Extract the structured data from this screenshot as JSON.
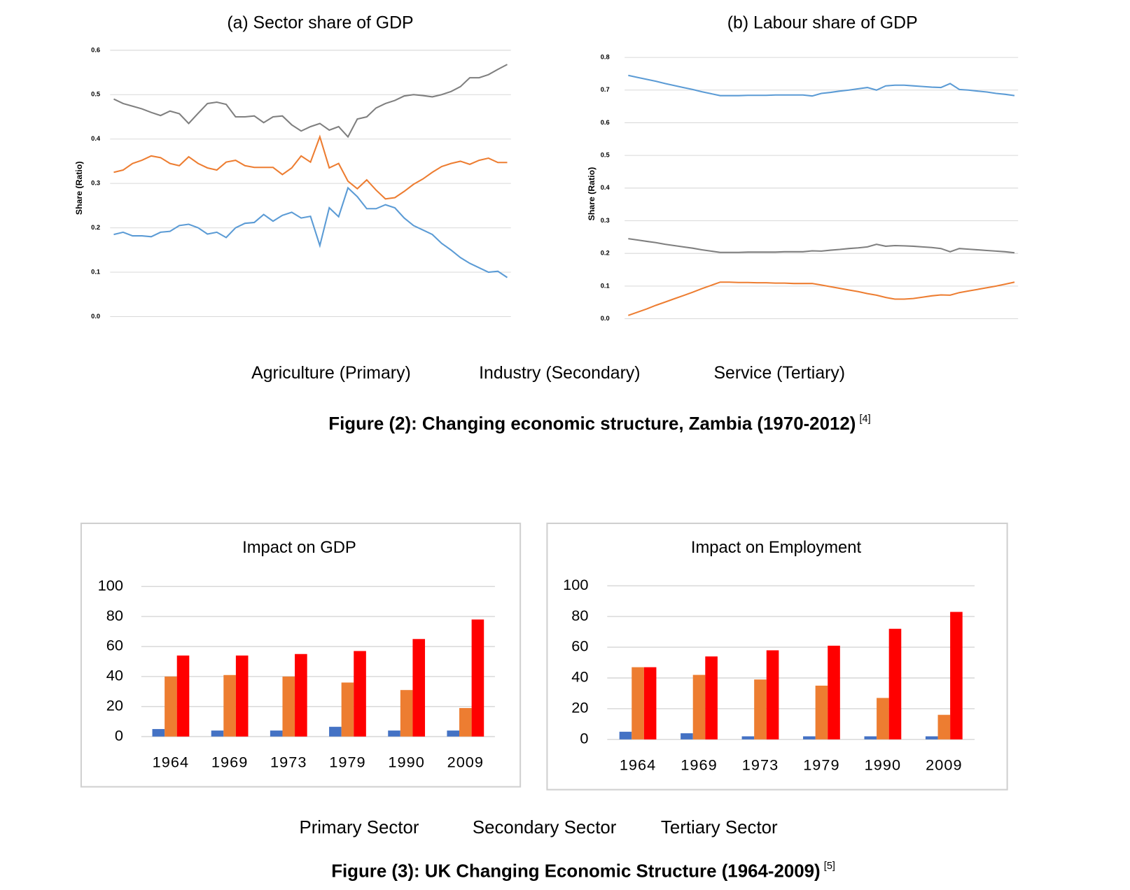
{
  "chart_data": [
    {
      "type": "line",
      "title": "(a)   Sector share of GDP",
      "ylabel": "Share (Ratio)",
      "ylim": [
        0,
        0.6
      ],
      "yticks": [
        {
          "value": 0,
          "label": "0.0"
        },
        0.1,
        0.2,
        0.3,
        0.4,
        0.5,
        0.6
      ],
      "grid": true,
      "series": [
        {
          "name": "Agriculture (Primary)",
          "color": "#5b9bd5",
          "values": [
            0.185,
            0.19,
            0.182,
            0.182,
            0.18,
            0.19,
            0.192,
            0.205,
            0.208,
            0.2,
            0.186,
            0.19,
            0.178,
            0.2,
            0.21,
            0.212,
            0.23,
            0.215,
            0.228,
            0.235,
            0.222,
            0.226,
            0.16,
            0.245,
            0.225,
            0.29,
            0.27,
            0.243,
            0.243,
            0.252,
            0.245,
            0.222,
            0.205,
            0.195,
            0.185,
            0.165,
            0.15,
            0.133,
            0.12,
            0.11,
            0.1,
            0.102,
            0.088
          ]
        },
        {
          "name": "Industry (Secondary)",
          "color": "#ed7d31",
          "values": [
            0.325,
            0.33,
            0.345,
            0.352,
            0.362,
            0.358,
            0.345,
            0.34,
            0.36,
            0.345,
            0.335,
            0.33,
            0.348,
            0.352,
            0.34,
            0.336,
            0.336,
            0.336,
            0.32,
            0.335,
            0.362,
            0.348,
            0.405,
            0.335,
            0.345,
            0.305,
            0.288,
            0.308,
            0.285,
            0.265,
            0.268,
            0.282,
            0.298,
            0.31,
            0.325,
            0.338,
            0.345,
            0.35,
            0.343,
            0.352,
            0.357,
            0.347,
            0.347
          ]
        },
        {
          "name": "Service (Tertiary)",
          "color": "#7f7f7f",
          "values": [
            0.49,
            0.48,
            0.474,
            0.468,
            0.46,
            0.453,
            0.463,
            0.457,
            0.435,
            0.458,
            0.48,
            0.483,
            0.478,
            0.45,
            0.45,
            0.452,
            0.437,
            0.45,
            0.452,
            0.432,
            0.418,
            0.428,
            0.435,
            0.42,
            0.428,
            0.405,
            0.445,
            0.45,
            0.47,
            0.48,
            0.487,
            0.497,
            0.5,
            0.498,
            0.495,
            0.5,
            0.507,
            0.518,
            0.538,
            0.538,
            0.545,
            0.557,
            0.568
          ]
        }
      ]
    },
    {
      "type": "line",
      "title": "(b)   Labour share of GDP",
      "ylabel": "Share (Ratio)",
      "ylim": [
        0,
        0.8
      ],
      "yticks": [
        {
          "value": 0,
          "label": "0.0"
        },
        0.1,
        0.2,
        0.3,
        0.4,
        0.5,
        0.6,
        0.7,
        0.8
      ],
      "grid": true,
      "series": [
        {
          "color": "#5b9bd5",
          "values": [
            0.745,
            0.739,
            0.733,
            0.727,
            0.72,
            0.714,
            0.708,
            0.702,
            0.695,
            0.689,
            0.683,
            0.683,
            0.683,
            0.684,
            0.684,
            0.684,
            0.685,
            0.685,
            0.685,
            0.685,
            0.682,
            0.69,
            0.693,
            0.697,
            0.7,
            0.704,
            0.708,
            0.7,
            0.713,
            0.715,
            0.715,
            0.713,
            0.711,
            0.709,
            0.708,
            0.72,
            0.702,
            0.7,
            0.697,
            0.694,
            0.69,
            0.687,
            0.683
          ]
        },
        {
          "color": "#ed7d31",
          "values": [
            0.01,
            0.02,
            0.03,
            0.041,
            0.051,
            0.061,
            0.071,
            0.081,
            0.092,
            0.102,
            0.112,
            0.112,
            0.111,
            0.111,
            0.11,
            0.11,
            0.109,
            0.109,
            0.108,
            0.108,
            0.108,
            0.103,
            0.098,
            0.093,
            0.088,
            0.083,
            0.077,
            0.072,
            0.065,
            0.06,
            0.06,
            0.062,
            0.066,
            0.07,
            0.073,
            0.072,
            0.08,
            0.085,
            0.09,
            0.095,
            0.1,
            0.106,
            0.112
          ]
        },
        {
          "color": "#7f7f7f",
          "values": [
            0.245,
            0.241,
            0.237,
            0.233,
            0.228,
            0.224,
            0.22,
            0.216,
            0.211,
            0.207,
            0.203,
            0.203,
            0.203,
            0.204,
            0.204,
            0.204,
            0.204,
            0.205,
            0.205,
            0.205,
            0.208,
            0.207,
            0.21,
            0.212,
            0.215,
            0.217,
            0.22,
            0.228,
            0.222,
            0.224,
            0.223,
            0.222,
            0.22,
            0.218,
            0.215,
            0.205,
            0.215,
            0.213,
            0.211,
            0.209,
            0.207,
            0.205,
            0.202
          ]
        }
      ]
    },
    {
      "type": "bar",
      "title": "Impact on GDP",
      "categories": [
        "1964",
        "1969",
        "1973",
        "1979",
        "1990",
        "2009"
      ],
      "ylim": [
        0,
        100
      ],
      "yticks": [
        0,
        20,
        40,
        60,
        80,
        100
      ],
      "grid": true,
      "series": [
        {
          "name": "Primary Sector",
          "color": "#4472c4",
          "values": [
            5,
            4,
            4,
            6.5,
            4,
            4
          ]
        },
        {
          "name": "Secondary Sector",
          "color": "#ed7d31",
          "values": [
            40,
            41,
            40,
            36,
            31,
            19
          ]
        },
        {
          "name": "Tertiary Sector",
          "color": "#ff0000",
          "values": [
            54,
            54,
            55,
            57,
            65,
            78
          ]
        }
      ]
    },
    {
      "type": "bar",
      "title": "Impact on Employment",
      "categories": [
        "1964",
        "1969",
        "1973",
        "1979",
        "1990",
        "2009"
      ],
      "ylim": [
        0,
        100
      ],
      "yticks": [
        0,
        20,
        40,
        60,
        80,
        100
      ],
      "grid": true,
      "series": [
        {
          "color": "#4472c4",
          "values": [
            5,
            4,
            2,
            2,
            2,
            2
          ]
        },
        {
          "color": "#ed7d31",
          "values": [
            47,
            42,
            39,
            35,
            27,
            16
          ]
        },
        {
          "color": "#ff0000",
          "values": [
            47,
            54,
            58,
            61,
            72,
            83
          ]
        }
      ]
    }
  ],
  "figures": [
    {
      "caption": "Figure (2): Changing economic structure, Zambia (1970-2012)",
      "ref": "[4]"
    },
    {
      "caption": "Figure (3): UK Changing Economic Structure (1964-2009)",
      "ref": "[5]"
    }
  ]
}
